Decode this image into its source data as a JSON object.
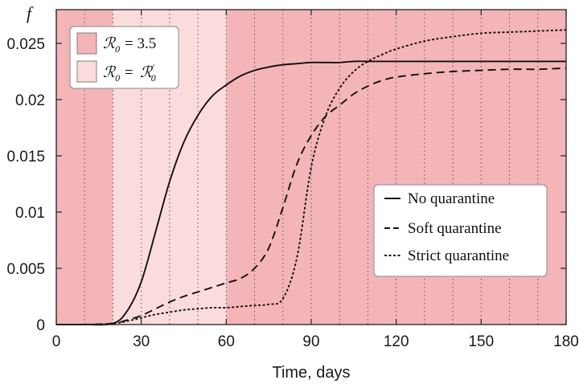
{
  "chart_data": {
    "type": "line",
    "xlabel": "Time, days",
    "ylabel": "f",
    "xlim": [
      0,
      180
    ],
    "ylim": [
      0,
      0.028
    ],
    "x_ticks": [
      "0",
      "30",
      "60",
      "90",
      "120",
      "150",
      "180"
    ],
    "y_ticks": [
      "0",
      "0.005",
      "0.01",
      "0.015",
      "0.02",
      "0.025"
    ],
    "grid": "vertical dotted lines every 10 days",
    "background_bands": [
      {
        "from": 0,
        "to": 20,
        "regime": "R0 = 3.5"
      },
      {
        "from": 20,
        "to": 60,
        "regime": "R0 = R0'"
      },
      {
        "from": 60,
        "to": 180,
        "regime": "R0 = 3.5"
      }
    ],
    "regime_legend": {
      "position": "top-left",
      "items": [
        {
          "label": "= 3.5",
          "color": "#f3b5b7"
        },
        {
          "label": "=",
          "color": "#fbdcdd"
        }
      ]
    },
    "legend": {
      "position": "center-right"
    },
    "x": [
      0,
      10,
      20,
      25,
      30,
      35,
      40,
      45,
      50,
      55,
      60,
      65,
      70,
      75,
      80,
      85,
      90,
      95,
      100,
      105,
      110,
      115,
      120,
      130,
      140,
      150,
      160,
      170,
      180
    ],
    "series": [
      {
        "name": "No quarantine",
        "style": "solid",
        "values": [
          0,
          0,
          0.0001,
          0.0012,
          0.0038,
          0.0082,
          0.0127,
          0.0162,
          0.0186,
          0.0203,
          0.0213,
          0.0221,
          0.0226,
          0.0229,
          0.0231,
          0.0232,
          0.0233,
          0.0233,
          0.0233,
          0.0234,
          0.0234,
          0.0234,
          0.0234,
          0.0234,
          0.0234,
          0.0234,
          0.0234,
          0.0234,
          0.0234
        ]
      },
      {
        "name": "Soft quarantine",
        "style": "dashed",
        "values": [
          0,
          0,
          0.0001,
          0.0004,
          0.0008,
          0.0014,
          0.002,
          0.0025,
          0.0029,
          0.0033,
          0.0037,
          0.0041,
          0.005,
          0.0068,
          0.0104,
          0.0143,
          0.0168,
          0.0185,
          0.0195,
          0.0205,
          0.0212,
          0.0217,
          0.022,
          0.0223,
          0.0225,
          0.0226,
          0.0227,
          0.0227,
          0.0228
        ]
      },
      {
        "name": "Strict quarantine",
        "style": "dotted",
        "values": [
          0,
          0,
          0.0001,
          0.0003,
          0.0006,
          0.0009,
          0.0011,
          0.0013,
          0.0014,
          0.0015,
          0.0015,
          0.0016,
          0.0017,
          0.0018,
          0.0023,
          0.006,
          0.014,
          0.0185,
          0.021,
          0.0225,
          0.0234,
          0.024,
          0.0245,
          0.0252,
          0.0256,
          0.0259,
          0.026,
          0.0261,
          0.0262
        ]
      }
    ]
  }
}
